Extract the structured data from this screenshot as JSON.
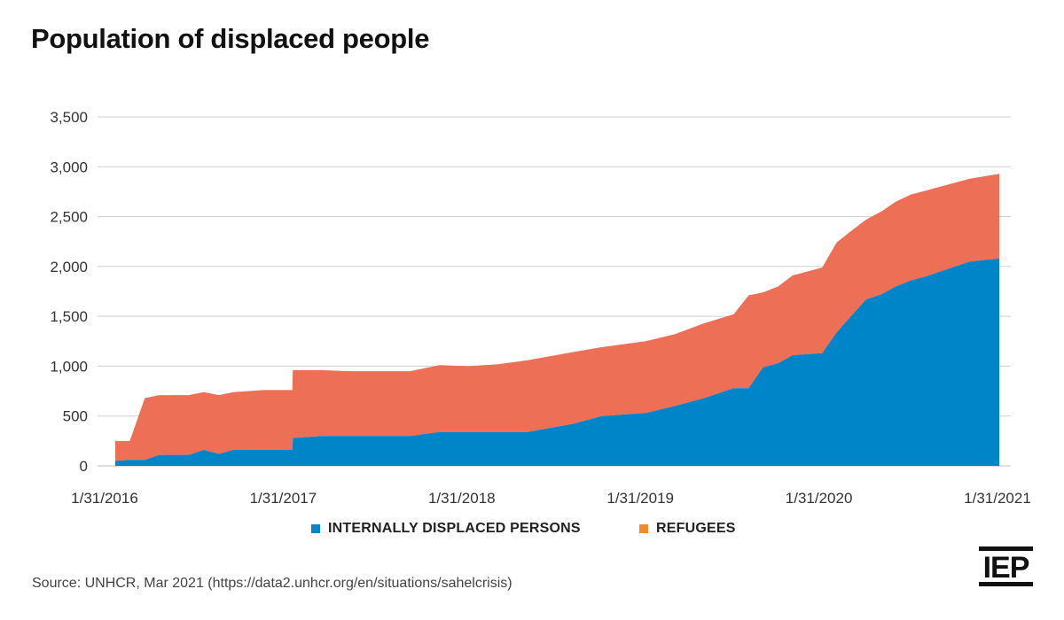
{
  "title": "Population of displaced people",
  "source": "Source: UNHCR, Mar 2021 (https://data2.unhcr.org/en/situations/sahelcrisis)",
  "logo_text": "IEP",
  "legend": [
    {
      "label": "INTERNALLY DISPLACED PERSONS",
      "color": "#0a87c8"
    },
    {
      "label": "REFUGEES",
      "color": "#f08a2a"
    }
  ],
  "chart_data": {
    "type": "area",
    "stacked": true,
    "xlabel": "",
    "ylabel": "",
    "ylim": [
      0,
      3500
    ],
    "y_ticks": [
      0,
      500,
      1000,
      1500,
      2000,
      2500,
      3000,
      3500
    ],
    "y_tick_labels": [
      "0",
      "500",
      "1,000",
      "1,500",
      "2,000",
      "2,500",
      "3,000",
      "3,500"
    ],
    "x_tick_labels": [
      "1/31/2016",
      "1/31/2017",
      "1/31/2018",
      "1/31/2019",
      "1/31/2020",
      "1/31/2021"
    ],
    "grid": true,
    "legend_position": "bottom",
    "x": [
      "2016-01-31",
      "2016-03-01",
      "2016-04-01",
      "2016-05-01",
      "2016-06-01",
      "2016-07-01",
      "2016-08-01",
      "2016-09-01",
      "2016-10-01",
      "2016-11-01",
      "2016-12-01",
      "2017-01-31",
      "2017-02-01",
      "2017-04-01",
      "2017-06-01",
      "2017-08-01",
      "2017-10-01",
      "2017-12-01",
      "2018-01-31",
      "2018-04-01",
      "2018-06-01",
      "2018-09-01",
      "2018-11-01",
      "2019-01-31",
      "2019-04-01",
      "2019-06-01",
      "2019-08-01",
      "2019-09-01",
      "2019-10-01",
      "2019-11-01",
      "2019-12-01",
      "2020-01-31",
      "2020-03-01",
      "2020-04-01",
      "2020-05-01",
      "2020-06-01",
      "2020-07-01",
      "2020-08-01",
      "2020-09-01",
      "2020-10-01",
      "2020-11-01",
      "2020-12-01",
      "2021-01-31"
    ],
    "series": [
      {
        "name": "INTERNALLY DISPLACED PERSONS",
        "color": "#0085c8",
        "values": [
          50,
          60,
          60,
          110,
          110,
          110,
          160,
          120,
          160,
          160,
          160,
          160,
          280,
          300,
          300,
          300,
          300,
          340,
          340,
          340,
          340,
          420,
          500,
          530,
          600,
          680,
          780,
          780,
          990,
          1030,
          1110,
          1130,
          1340,
          1510,
          1670,
          1720,
          1800,
          1860,
          1900,
          1950,
          2000,
          2050,
          2080
        ]
      },
      {
        "name": "REFUGEES",
        "color": "#ed6f55",
        "values": [
          200,
          190,
          620,
          600,
          600,
          600,
          580,
          590,
          580,
          590,
          600,
          600,
          680,
          660,
          650,
          650,
          650,
          670,
          660,
          680,
          720,
          720,
          690,
          720,
          720,
          750,
          740,
          930,
          750,
          770,
          800,
          860,
          900,
          850,
          800,
          830,
          850,
          860,
          860,
          850,
          840,
          830,
          850
        ]
      }
    ]
  }
}
